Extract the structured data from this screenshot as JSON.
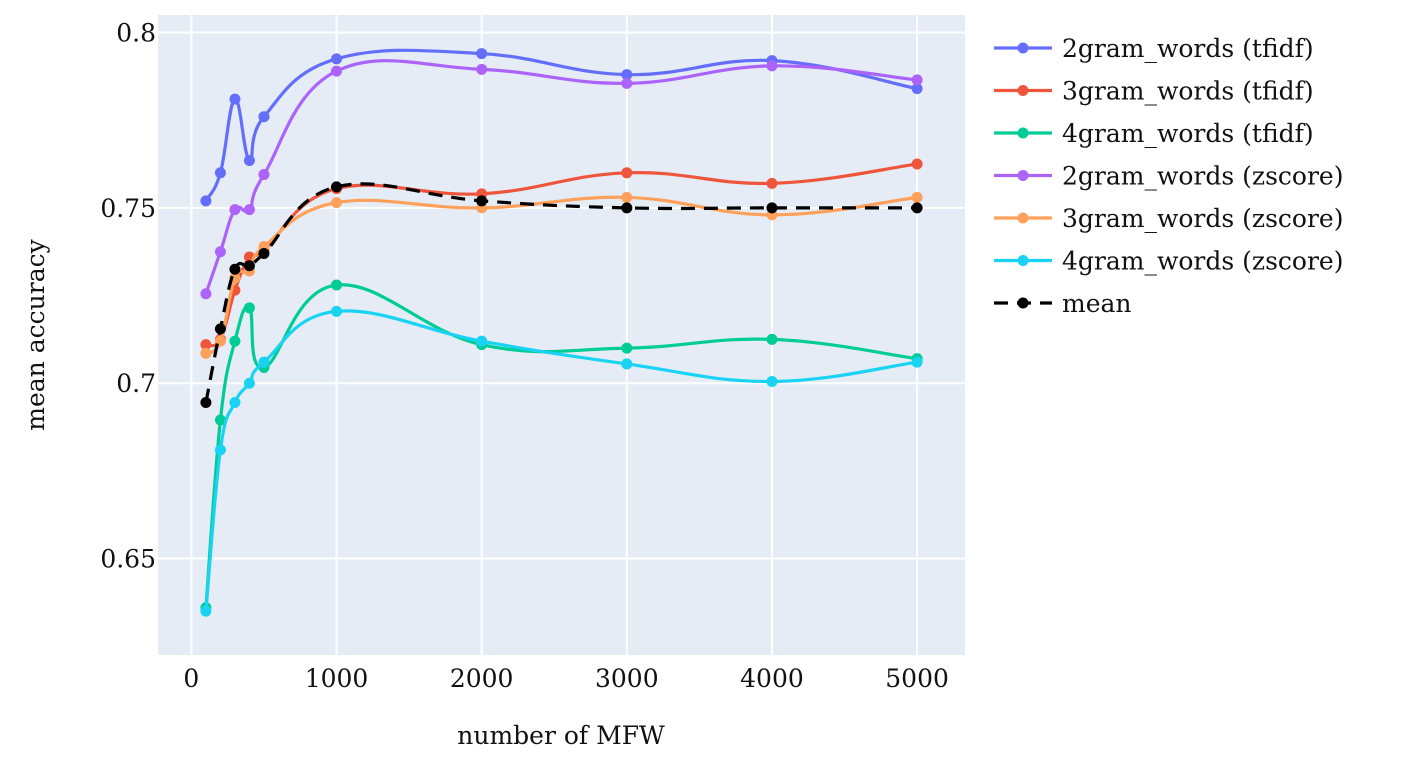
{
  "chart_data": {
    "type": "line",
    "xlabel": "number of MFW",
    "ylabel": "mean accuracy",
    "x": [
      100,
      200,
      300,
      400,
      500,
      1000,
      2000,
      3000,
      4000,
      5000
    ],
    "xlim": [
      -230,
      5330
    ],
    "ylim": [
      0.6225,
      0.805
    ],
    "xticks": [
      0,
      1000,
      2000,
      3000,
      4000,
      5000
    ],
    "xtick_labels": [
      "0",
      "1000",
      "2000",
      "3000",
      "4000",
      "5000"
    ],
    "yticks": [
      0.65,
      0.7,
      0.75,
      0.8
    ],
    "ytick_labels": [
      "0.65",
      "0.7",
      "0.75",
      "0.8"
    ],
    "grid": true,
    "plot_background": "#e5ecf6",
    "legend_position": "right",
    "series": [
      {
        "name": "2gram_words (tfidf)",
        "color": "#636efa",
        "dash": "solid",
        "values": [
          0.752,
          0.76,
          0.781,
          0.7635,
          0.776,
          0.7925,
          0.794,
          0.788,
          0.792,
          0.784
        ]
      },
      {
        "name": "3gram_words (tfidf)",
        "color": "#ef553b",
        "dash": "solid",
        "values": [
          0.711,
          0.7125,
          0.7265,
          0.736,
          0.738,
          0.7555,
          0.754,
          0.76,
          0.757,
          0.7625
        ]
      },
      {
        "name": "4gram_words (tfidf)",
        "color": "#00cc96",
        "dash": "solid",
        "values": [
          0.636,
          0.6895,
          0.712,
          0.7215,
          0.7045,
          0.728,
          0.711,
          0.71,
          0.7125,
          0.707
        ]
      },
      {
        "name": "2gram_words (zscore)",
        "color": "#ab63fa",
        "dash": "solid",
        "values": [
          0.7255,
          0.7375,
          0.7495,
          0.7495,
          0.7595,
          0.789,
          0.7895,
          0.7855,
          0.7905,
          0.7865
        ]
      },
      {
        "name": "3gram_words (zscore)",
        "color": "#ffa15a",
        "dash": "solid",
        "values": [
          0.7085,
          0.712,
          0.73,
          0.732,
          0.739,
          0.7515,
          0.75,
          0.753,
          0.748,
          0.753
        ]
      },
      {
        "name": "4gram_words (zscore)",
        "color": "#19d3f3",
        "dash": "solid",
        "values": [
          0.635,
          0.681,
          0.6945,
          0.7,
          0.706,
          0.7205,
          0.712,
          0.7055,
          0.7005,
          0.706
        ]
      },
      {
        "name": "mean",
        "color": "#000000",
        "dash": "dashed",
        "values": [
          0.6945,
          0.7155,
          0.7325,
          0.7335,
          0.737,
          0.756,
          0.752,
          0.75,
          0.75,
          0.75
        ]
      }
    ]
  }
}
